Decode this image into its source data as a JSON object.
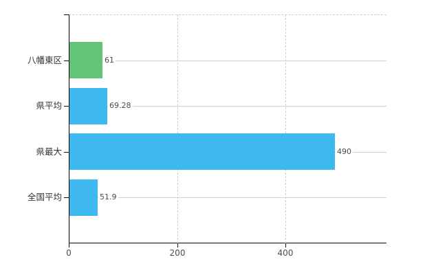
{
  "chart_data": {
    "type": "bar",
    "orientation": "horizontal",
    "title": "",
    "xlabel": "",
    "ylabel": "",
    "categories": [
      "八幡東区",
      "県平均",
      "県最大",
      "全国平均"
    ],
    "values": [
      61,
      69.28,
      490,
      51.9
    ],
    "value_labels": [
      "61",
      "69.28",
      "490",
      "51.9"
    ],
    "bar_colors": [
      "#64c476",
      "#3eb9ef",
      "#3eb9ef",
      "#3eb9ef"
    ],
    "x_ticks": [
      0,
      200,
      400
    ],
    "x_tick_labels": [
      "0",
      "200",
      "400"
    ],
    "xlim": [
      0,
      587
    ],
    "grid": {
      "vertical": "dashed",
      "horizontal": "solid",
      "top_border": "dashed"
    },
    "legend": "none"
  },
  "colors": {
    "bar_green": "#64c476",
    "bar_blue": "#3eb9ef",
    "axis": "#000000",
    "grid_solid": "#cdd3cd",
    "grid_dashed": "#cfcfcf",
    "category_text": "#333333",
    "value_text": "#4a4a4a",
    "tick_text": "#4d4d4d",
    "background": "#ffffff"
  }
}
